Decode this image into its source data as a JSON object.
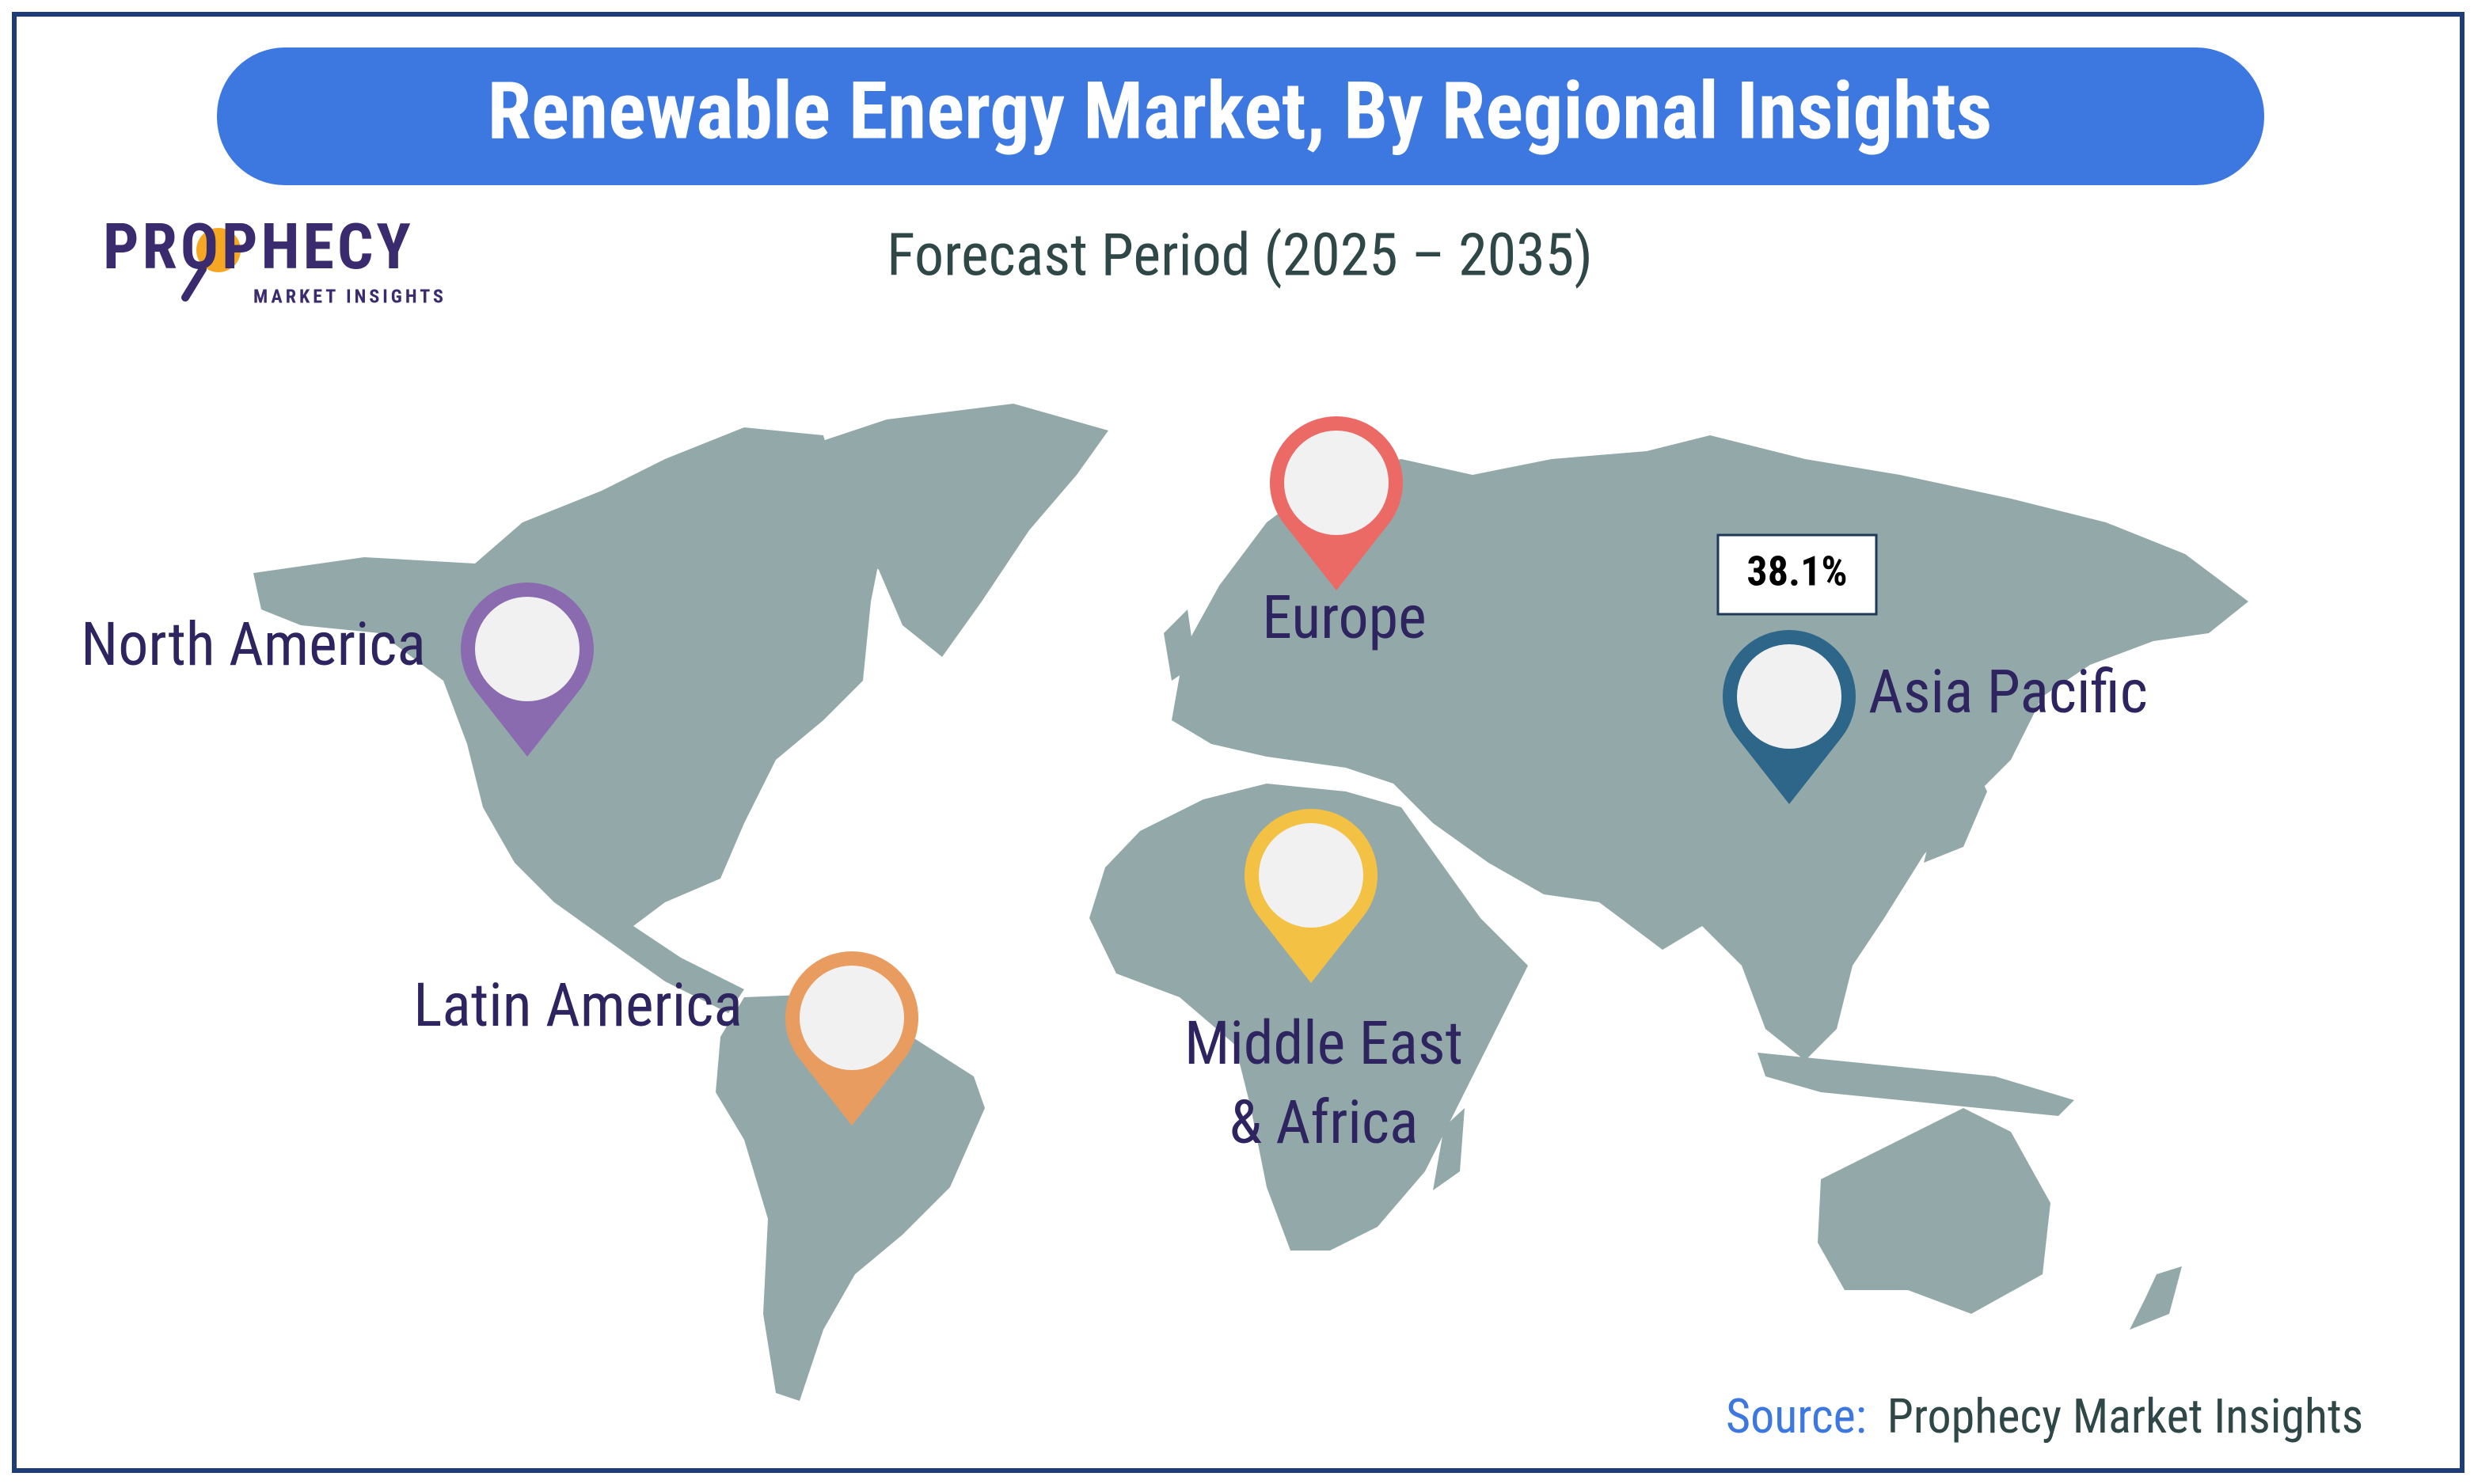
{
  "header": {
    "title": "Renewable Energy Market, By Regional Insights",
    "subtitle": "Forecast Period (2025 – 2035)"
  },
  "logo": {
    "brand": "PROPHECY",
    "tagline": "MARKET INSIGHTS"
  },
  "regions": [
    {
      "label_lines": [
        "North America"
      ],
      "color": "#8a6bb0"
    },
    {
      "label_lines": [
        "Europe"
      ],
      "color": "#ec6a66"
    },
    {
      "label_lines": [
        "Asia Pacific"
      ],
      "color": "#2e6689",
      "share": "38.1%"
    },
    {
      "label_lines": [
        "Middle East",
        "& Africa"
      ],
      "color": "#f3c244"
    },
    {
      "label_lines": [
        "Latin America"
      ],
      "color": "#e99c5f"
    }
  ],
  "source": {
    "prefix": "Source:",
    "name": "Prophecy Market Insights"
  }
}
